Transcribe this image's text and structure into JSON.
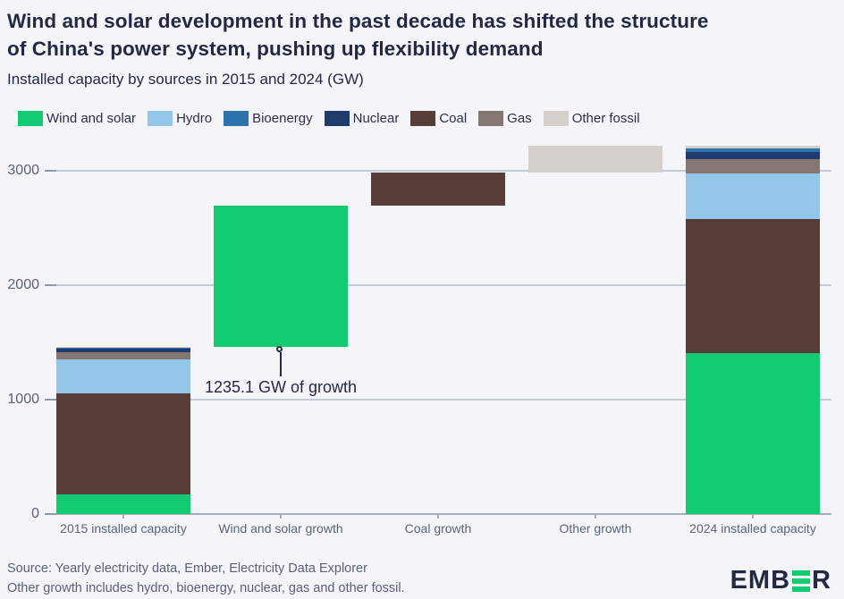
{
  "header": {
    "title_line1": "Wind and solar development in the past decade has shifted the structure",
    "title_line2": "of China's power system, pushing up flexibility demand",
    "subtitle": "Installed capacity by sources in 2015 and 2024 (GW)"
  },
  "colors": {
    "wind_solar": "#11ca72",
    "hydro": "#93c7ea",
    "bioenergy": "#2d73ac",
    "nuclear": "#1f3b6d",
    "coal": "#563d38",
    "gas": "#847671",
    "other_fossil": "#d3d0cc",
    "background": "#f4f4f9",
    "title_text": "#242943",
    "axis_text": "#5d6477",
    "gridline": "#c5c9d6"
  },
  "legend": {
    "items": [
      {
        "label": "Wind and solar",
        "source": "wind_solar"
      },
      {
        "label": "Hydro",
        "source": "hydro"
      },
      {
        "label": "Bioenergy",
        "source": "bioenergy"
      },
      {
        "label": "Nuclear",
        "source": "nuclear"
      },
      {
        "label": "Coal",
        "source": "coal"
      },
      {
        "label": "Gas",
        "source": "gas"
      },
      {
        "label": "Other fossil",
        "source": "other_fossil"
      }
    ]
  },
  "chart_data": {
    "type": "bar",
    "subtype": "stacked-waterfall",
    "title": "Wind and solar development in the past decade has shifted the structure of China's power system, pushing up flexibility demand",
    "subtitle": "Installed capacity by sources in 2015 and 2024 (GW)",
    "unit": "GW",
    "xlabel": "",
    "ylabel": "",
    "ylim": [
      0,
      3240
    ],
    "yticks": [
      0,
      1000,
      2000,
      3000
    ],
    "grid": true,
    "legend_position": "top",
    "categories": [
      "2015 installed capacity",
      "Wind and solar growth",
      "Coal growth",
      "Other growth",
      "2024 installed capacity"
    ],
    "bars": [
      {
        "category": "2015 installed capacity",
        "kind": "stack",
        "total": 1459.9,
        "segments": [
          {
            "source": "wind_solar",
            "value": 172.9
          },
          {
            "source": "coal",
            "value": 885
          },
          {
            "source": "hydro",
            "value": 290
          },
          {
            "source": "gas",
            "value": 66
          },
          {
            "source": "nuclear",
            "value": 27
          },
          {
            "source": "bioenergy",
            "value": 9
          },
          {
            "source": "other_fossil",
            "value": 10
          }
        ]
      },
      {
        "category": "Wind and solar growth",
        "kind": "float",
        "source": "wind_solar",
        "start": 1459.9,
        "value": 1235.1,
        "annotation": "1235.1 GW of growth"
      },
      {
        "category": "Coal growth",
        "kind": "float",
        "source": "coal",
        "start": 2695,
        "value": 287
      },
      {
        "category": "Other growth",
        "kind": "float",
        "source": "other_fossil",
        "start": 2982,
        "value": 235.1
      },
      {
        "category": "2024 installed capacity",
        "kind": "stack",
        "total": 3217.1,
        "segments": [
          {
            "source": "wind_solar",
            "value": 1408
          },
          {
            "source": "coal",
            "value": 1172
          },
          {
            "source": "hydro",
            "value": 395
          },
          {
            "source": "gas",
            "value": 128
          },
          {
            "source": "nuclear",
            "value": 58
          },
          {
            "source": "bioenergy",
            "value": 31
          },
          {
            "source": "other_fossil",
            "value": 25.1
          }
        ]
      }
    ]
  },
  "footer": {
    "source_line": "Source: Yearly electricity data, Ember, Electricity Data Explorer",
    "note_line": "Other growth includes hydro, bioenergy, nuclear, gas and other fossil.",
    "logo_left": "EMB",
    "logo_right": "R"
  }
}
